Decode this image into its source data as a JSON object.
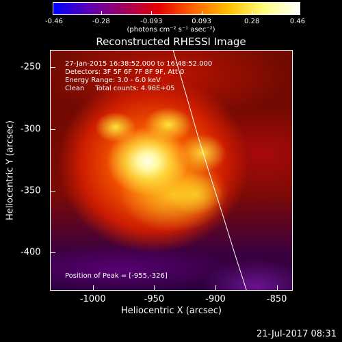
{
  "colorbar": {
    "ticks": [
      "-0.46",
      "-0.28",
      "-0.093",
      "0.093",
      "0.28",
      "0.46"
    ],
    "tick_values": [
      -0.46,
      -0.28,
      -0.093,
      0.093,
      0.28,
      0.46
    ],
    "range": [
      -0.46,
      0.46
    ],
    "unit_label": "(photons cm⁻² s⁻¹ asec⁻²)",
    "colors": [
      "#0000ff",
      "#5a00b4",
      "#a00060",
      "#e60000",
      "#ff6600",
      "#ffc000",
      "#ffff80",
      "#ffffff"
    ]
  },
  "chart_data": {
    "type": "heatmap",
    "title": "Reconstructed RHESSI Image",
    "xlabel": "Heliocentric X (arcsec)",
    "ylabel": "Heliocentric Y (arcsec)",
    "xlim": [
      -1035,
      -837
    ],
    "ylim": [
      -431,
      -236
    ],
    "x_ticks": [
      -1000,
      -950,
      -900,
      -850
    ],
    "x_tick_labels": [
      "-1000",
      "-950",
      "-900",
      "-850"
    ],
    "y_ticks": [
      -250,
      -300,
      -350,
      -400
    ],
    "y_tick_labels": [
      "-250",
      "-300",
      "-350",
      "-400"
    ],
    "peak": [
      -955,
      -326
    ],
    "limb_curve_x": [
      -935,
      -925,
      -915,
      -905,
      -895,
      -885,
      -875
    ],
    "limb_curve_y": [
      -236,
      -270,
      -305,
      -337,
      -368,
      -400,
      -431
    ]
  },
  "info": {
    "time_range": "27-Jan-2015 16:38:52.000 to 16:48:52.000",
    "detectors": "Detectors: 3F 5F 6F 7F 8F 9F, Att 0",
    "energy": "Energy Range: 3.0 - 6.0 keV",
    "clean": "Clean     Total counts: 4.96E+05",
    "peak_label": "Position of Peak = [-955,-326]"
  },
  "footer_date": "21-Jul-2017 08:31"
}
